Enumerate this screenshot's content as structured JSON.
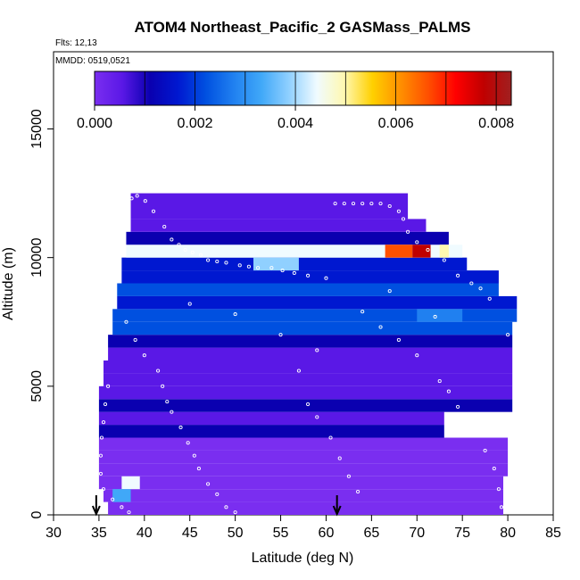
{
  "chart_data": {
    "type": "heatmap",
    "title": "ATOM4 Northeast_Pacific_2 GASMass_PALMS",
    "subtitle_flights": "Flts: 12,13",
    "subtitle_dates": "MMDD: 0519,0521",
    "xlabel": "Latitude (deg N)",
    "ylabel": "Altitude (m)",
    "xlim": [
      30,
      85
    ],
    "ylim": [
      0,
      18000
    ],
    "x_ticks": [
      "30",
      "35",
      "40",
      "45",
      "50",
      "55",
      "60",
      "65",
      "70",
      "75",
      "80",
      "85"
    ],
    "y_ticks": [
      "0",
      "5000",
      "10000",
      "15000"
    ],
    "colorbar": {
      "range": [
        0,
        0.0083
      ],
      "tick_values": [
        0,
        0.002,
        0.004,
        0.006,
        0.008
      ],
      "tick_labels": [
        "0.000",
        "0.002",
        "0.004",
        "0.006",
        "0.008"
      ],
      "colors": [
        "#7a2ef0",
        "#5a18e6",
        "#0a00b0",
        "#0018d0",
        "#0050e0",
        "#2080f0",
        "#40a8f8",
        "#90d0ff",
        "#f0fbff",
        "#fff8b0",
        "#ffd000",
        "#ff9000",
        "#ff5000",
        "#ff0000",
        "#c00000",
        "#a02020"
      ]
    },
    "bands": [
      {
        "alt": [
          0,
          500
        ],
        "lat": [
          36,
          79.5
        ],
        "value": 0.0002
      },
      {
        "alt": [
          500,
          1000
        ],
        "lat": [
          35.5,
          79.5
        ],
        "value": 0.0002
      },
      {
        "alt": [
          1000,
          1500
        ],
        "lat": [
          35,
          79.5
        ],
        "value": 0.0002
      },
      {
        "alt": [
          1500,
          2000
        ],
        "lat": [
          35,
          80
        ],
        "value": 0.0002
      },
      {
        "alt": [
          2000,
          2500
        ],
        "lat": [
          35,
          80
        ],
        "value": 0.0002
      },
      {
        "alt": [
          2500,
          3000
        ],
        "lat": [
          35,
          80
        ],
        "value": 0.0002
      },
      {
        "alt": [
          3000,
          3500
        ],
        "lat": [
          35,
          73
        ],
        "value": 0.0009
      },
      {
        "alt": [
          3500,
          4000
        ],
        "lat": [
          35,
          73
        ],
        "value": 0.0006
      },
      {
        "alt": [
          4000,
          4500
        ],
        "lat": [
          35,
          80.5
        ],
        "value": 0.001
      },
      {
        "alt": [
          4500,
          5000
        ],
        "lat": [
          35,
          80.5
        ],
        "value": 0.0004
      },
      {
        "alt": [
          5000,
          5500
        ],
        "lat": [
          35.5,
          80.5
        ],
        "value": 0.0007
      },
      {
        "alt": [
          5500,
          6000
        ],
        "lat": [
          35.5,
          80.5
        ],
        "value": 0.0003
      },
      {
        "alt": [
          6000,
          6500
        ],
        "lat": [
          36,
          80.5
        ],
        "value": 0.0005
      },
      {
        "alt": [
          6500,
          7000
        ],
        "lat": [
          36,
          80.5
        ],
        "value": 0.0012
      },
      {
        "alt": [
          7000,
          7500
        ],
        "lat": [
          36.5,
          80.5
        ],
        "value": 0.002
      },
      {
        "alt": [
          7500,
          8000
        ],
        "lat": [
          36.5,
          81
        ],
        "value": 0.0024
      },
      {
        "alt": [
          8000,
          8500
        ],
        "lat": [
          37,
          81
        ],
        "value": 0.0018
      },
      {
        "alt": [
          8500,
          9000
        ],
        "lat": [
          37,
          79
        ],
        "value": 0.002
      },
      {
        "alt": [
          9000,
          9500
        ],
        "lat": [
          37.5,
          79
        ],
        "value": 0.0014
      },
      {
        "alt": [
          9500,
          10000
        ],
        "lat": [
          37.5,
          75.5
        ],
        "value": 0.0018
      },
      {
        "alt": [
          10000,
          10500
        ],
        "lat": [
          38,
          75
        ],
        "value": 0.0042
      },
      {
        "alt": [
          10500,
          11000
        ],
        "lat": [
          38,
          73.5
        ],
        "value": 0.0012
      },
      {
        "alt": [
          11000,
          11500
        ],
        "lat": [
          38.5,
          71
        ],
        "value": 0.0006
      },
      {
        "alt": [
          11500,
          12000
        ],
        "lat": [
          38.5,
          69
        ],
        "value": 0.0008
      },
      {
        "alt": [
          12000,
          12500
        ],
        "lat": [
          38.5,
          69
        ],
        "value": 0.0004
      }
    ],
    "highlights": [
      {
        "alt": [
          1000,
          1500
        ],
        "lat": [
          37.5,
          39.5
        ],
        "value": 0.0045
      },
      {
        "alt": [
          500,
          1000
        ],
        "lat": [
          36.5,
          38.5
        ],
        "value": 0.0035
      },
      {
        "alt": [
          10000,
          10500
        ],
        "lat": [
          66.5,
          69.5
        ],
        "value": 0.0068
      },
      {
        "alt": [
          10000,
          10500
        ],
        "lat": [
          69.5,
          71.5
        ],
        "value": 0.008
      },
      {
        "alt": [
          10000,
          10500
        ],
        "lat": [
          72.5,
          73.5
        ],
        "value": 0.0052
      },
      {
        "alt": [
          9500,
          10000
        ],
        "lat": [
          52,
          57
        ],
        "value": 0.004
      },
      {
        "alt": [
          7500,
          8000
        ],
        "lat": [
          70,
          75
        ],
        "value": 0.003
      }
    ],
    "sample_points": [
      [
        38.6,
        12300
      ],
      [
        39.2,
        12400
      ],
      [
        40.1,
        12200
      ],
      [
        41,
        11800
      ],
      [
        42.2,
        11200
      ],
      [
        43,
        10700
      ],
      [
        43.8,
        10500
      ],
      [
        44.5,
        10300
      ],
      [
        45.3,
        10200
      ],
      [
        46.2,
        10100
      ],
      [
        47,
        9900
      ],
      [
        48,
        9850
      ],
      [
        49,
        9800
      ],
      [
        50.5,
        9700
      ],
      [
        51.5,
        9650
      ],
      [
        52.5,
        9600
      ],
      [
        54,
        9600
      ],
      [
        55.2,
        9500
      ],
      [
        56.5,
        9400
      ],
      [
        58,
        9300
      ],
      [
        60,
        9200
      ],
      [
        61,
        12100
      ],
      [
        62,
        12100
      ],
      [
        63,
        12100
      ],
      [
        64,
        12100
      ],
      [
        65,
        12100
      ],
      [
        66,
        12100
      ],
      [
        67,
        12000
      ],
      [
        68,
        11800
      ],
      [
        68.5,
        11500
      ],
      [
        69,
        11000
      ],
      [
        70,
        10600
      ],
      [
        71.2,
        10300
      ],
      [
        73,
        9900
      ],
      [
        74.5,
        9300
      ],
      [
        76,
        9000
      ],
      [
        77,
        8800
      ],
      [
        78,
        8400
      ],
      [
        80,
        7000
      ],
      [
        38,
        7500
      ],
      [
        39,
        6800
      ],
      [
        40,
        6200
      ],
      [
        41.5,
        5600
      ],
      [
        42,
        5000
      ],
      [
        42.5,
        4400
      ],
      [
        43,
        4000
      ],
      [
        44,
        3400
      ],
      [
        44.8,
        2800
      ],
      [
        45.5,
        2300
      ],
      [
        46,
        1800
      ],
      [
        47,
        1200
      ],
      [
        48,
        800
      ],
      [
        49,
        300
      ],
      [
        50,
        100
      ],
      [
        36,
        5000
      ],
      [
        35.7,
        4300
      ],
      [
        35.5,
        3600
      ],
      [
        35.3,
        3000
      ],
      [
        35.2,
        2300
      ],
      [
        35.2,
        1600
      ],
      [
        35.5,
        1000
      ],
      [
        36.5,
        600
      ],
      [
        37.5,
        300
      ],
      [
        38.3,
        100
      ],
      [
        58,
        4300
      ],
      [
        59,
        3800
      ],
      [
        60.5,
        3000
      ],
      [
        61.5,
        2200
      ],
      [
        62.5,
        1500
      ],
      [
        63.5,
        900
      ],
      [
        66,
        7300
      ],
      [
        68,
        6800
      ],
      [
        70,
        6200
      ],
      [
        72.5,
        5200
      ],
      [
        73.5,
        4800
      ],
      [
        74.5,
        4200
      ],
      [
        76,
        3400
      ],
      [
        77.5,
        2500
      ],
      [
        78.5,
        1800
      ],
      [
        79,
        1000
      ],
      [
        79.3,
        300
      ],
      [
        45,
        8200
      ],
      [
        50,
        7800
      ],
      [
        55,
        7000
      ],
      [
        57,
        5600
      ],
      [
        59,
        6400
      ],
      [
        64,
        7900
      ],
      [
        67,
        8700
      ],
      [
        72,
        7700
      ]
    ],
    "arrows_lat": [
      34.7,
      61.2
    ]
  }
}
